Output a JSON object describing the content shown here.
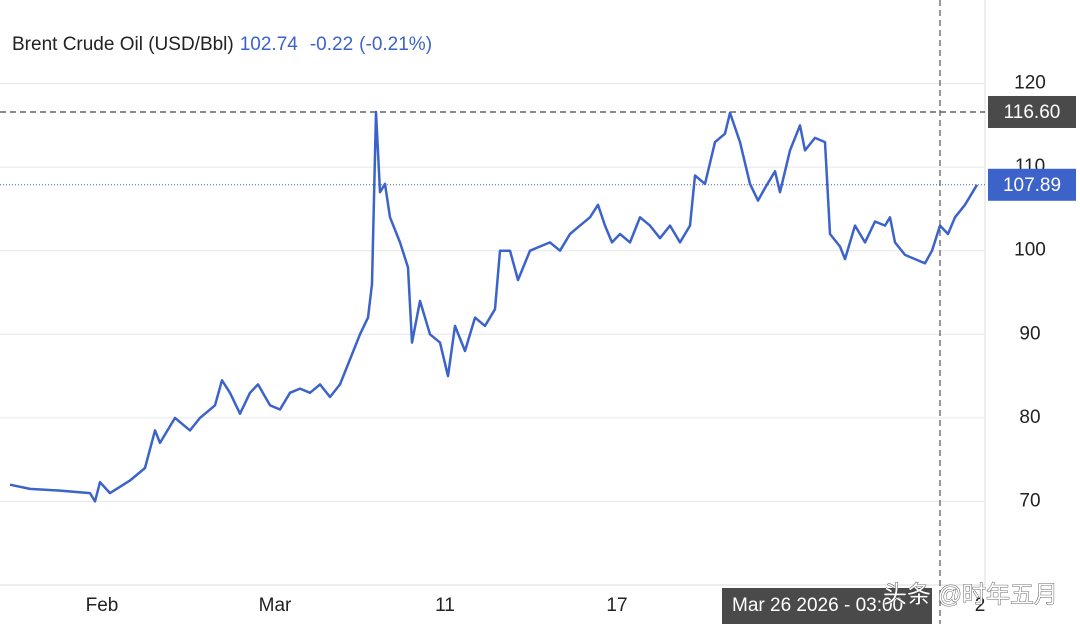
{
  "header": {
    "title": "Brent Crude Oil (USD/Bbl)",
    "price": "102.74",
    "change": "-0.22",
    "change_pct": "(-0.21%)"
  },
  "chart_data": {
    "type": "line",
    "x": [
      2,
      6,
      12,
      18,
      19,
      20,
      22,
      26,
      29,
      31,
      32,
      35,
      38,
      40,
      43,
      44.4,
      46,
      48,
      50,
      51.6,
      54,
      56,
      58,
      60,
      62,
      64,
      66,
      68,
      70,
      72,
      73.6,
      74.4,
      75.2,
      76,
      77,
      78,
      80,
      81.6,
      82.4,
      84,
      86,
      88,
      89.6,
      91,
      93,
      95,
      97,
      99,
      100,
      102,
      103.6,
      106,
      108,
      110,
      112,
      114,
      116,
      118,
      119.6,
      121,
      122.4,
      124,
      126,
      128,
      130,
      132,
      134,
      136,
      138,
      139,
      141,
      143,
      145,
      146,
      148,
      150,
      151.6,
      153,
      155,
      156,
      158,
      160,
      161,
      163,
      165,
      166,
      168,
      169,
      171,
      173,
      175,
      177,
      178,
      179,
      181,
      183,
      185,
      186.4,
      188,
      189.6,
      191,
      193,
      195.4
    ],
    "series": [
      {
        "name": "Brent Crude Oil",
        "color": "#3b63c9",
        "values": [
          72,
          71.5,
          71.3,
          71,
          70,
          72.3,
          71,
          72.5,
          74,
          78.5,
          77,
          80,
          78.5,
          80,
          81.5,
          84.5,
          83,
          80.5,
          83,
          84,
          81.5,
          81,
          83,
          83.5,
          83,
          84,
          82.5,
          84,
          87,
          90,
          92,
          96,
          116.6,
          107,
          108,
          104,
          101,
          98,
          89,
          94,
          90,
          89,
          85,
          91,
          88,
          92,
          91,
          93,
          100,
          100,
          96.5,
          100,
          100.5,
          101,
          100,
          102,
          103,
          104,
          105.5,
          103,
          101,
          102,
          101,
          104,
          103,
          101.5,
          103,
          101,
          103,
          109,
          108,
          113,
          114,
          116.5,
          113,
          108,
          106,
          107.5,
          109.5,
          107,
          112,
          115,
          112,
          113.5,
          113,
          102,
          100.5,
          99,
          103,
          101,
          103.5,
          103,
          104,
          101,
          99.5,
          99,
          98.5,
          100,
          103,
          102,
          104,
          105.5,
          107.89
        ]
      }
    ],
    "xlim": [
      0,
      197
    ],
    "xticks": [
      {
        "value": 20.4,
        "label": "Feb"
      },
      {
        "value": 55,
        "label": "Mar"
      },
      {
        "value": 89,
        "label": "11"
      },
      {
        "value": 123.4,
        "label": "17"
      },
      {
        "value": 196,
        "label": "2"
      }
    ],
    "ylim": [
      60,
      130
    ],
    "yticks": [
      70,
      80,
      90,
      100,
      110,
      120
    ],
    "grid": true,
    "high_marker": {
      "value": 116.6,
      "label": "116.60"
    },
    "last_marker": {
      "value": 107.89,
      "label": "107.89"
    },
    "crosshair": {
      "value": 188,
      "label": "Mar 26 2026 - 03:00"
    },
    "watermark": "头条 @时年五月"
  }
}
